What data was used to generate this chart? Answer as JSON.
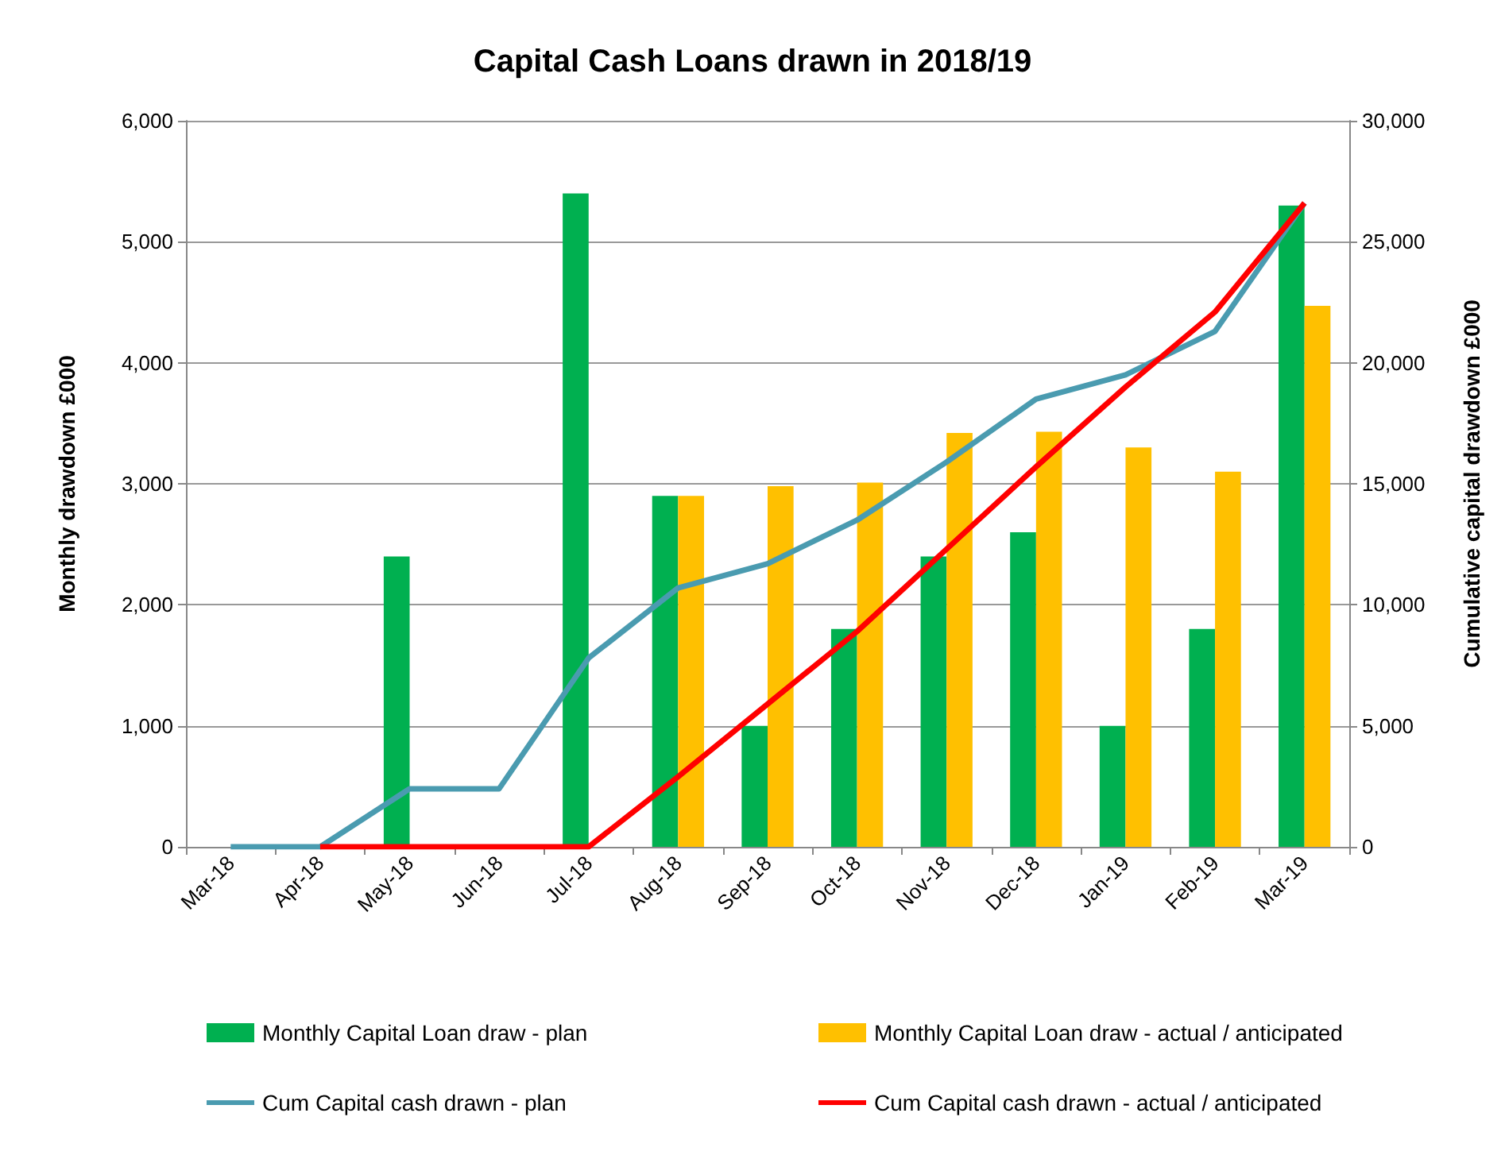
{
  "chart_data": {
    "type": "bar",
    "title": "Capital Cash Loans drawn in 2018/19",
    "ylabel": "Monthly drawdown £000",
    "y2label": "Cumulative capital drawdown £000",
    "categories": [
      "Mar-18",
      "Apr-18",
      "May-18",
      "Jun-18",
      "Jul-18",
      "Aug-18",
      "Sep-18",
      "Oct-18",
      "Nov-18",
      "Dec-18",
      "Jan-19",
      "Feb-19",
      "Mar-19"
    ],
    "series": [
      {
        "name": "Monthly Capital Loan draw - plan",
        "color": "#00b050",
        "values": [
          null,
          null,
          2400,
          null,
          5400,
          2900,
          1000,
          1800,
          2400,
          2600,
          1000,
          1800,
          5300
        ]
      },
      {
        "name": "Monthly Capital Loan draw - actual / anticipated",
        "color": "#ffc000",
        "values": [
          null,
          null,
          null,
          null,
          null,
          2900,
          2980,
          3010,
          3420,
          3430,
          3300,
          3100,
          4470
        ]
      },
      {
        "name": "Cum Capital cash drawn - plan",
        "type": "line",
        "axis": "y2",
        "color": "#4a9bb0",
        "values": [
          0,
          0,
          2400,
          2400,
          7800,
          10700,
          11700,
          13500,
          15900,
          18500,
          19500,
          21300,
          26600
        ]
      },
      {
        "name": "Cum Capital cash drawn - actual / anticipated",
        "type": "line",
        "axis": "y2",
        "color": "#ff0000",
        "values": [
          null,
          0,
          0,
          0,
          0,
          2900,
          5900,
          8900,
          12300,
          15700,
          19000,
          22100,
          26600
        ]
      }
    ],
    "ylim": [
      0,
      6000
    ],
    "yticks": [
      {
        "value": 0,
        "label": "0"
      },
      {
        "value": 1000,
        "label": "1,000"
      },
      {
        "value": 2000,
        "label": "2,000"
      },
      {
        "value": 3000,
        "label": "3,000"
      },
      {
        "value": 4000,
        "label": "4,000"
      },
      {
        "value": 5000,
        "label": "5,000"
      },
      {
        "value": 6000,
        "label": "6,000"
      }
    ],
    "y2lim": [
      0,
      30000
    ],
    "y2ticks": [
      {
        "value": 0,
        "label": "0"
      },
      {
        "value": 5000,
        "label": "5,000"
      },
      {
        "value": 10000,
        "label": "10,000"
      },
      {
        "value": 15000,
        "label": "15,000"
      },
      {
        "value": 20000,
        "label": "20,000"
      },
      {
        "value": 25000,
        "label": "25,000"
      },
      {
        "value": 30000,
        "label": "30,000"
      }
    ],
    "grid": "y",
    "legend": "bottom",
    "marker": "none",
    "line_style": "solid"
  }
}
